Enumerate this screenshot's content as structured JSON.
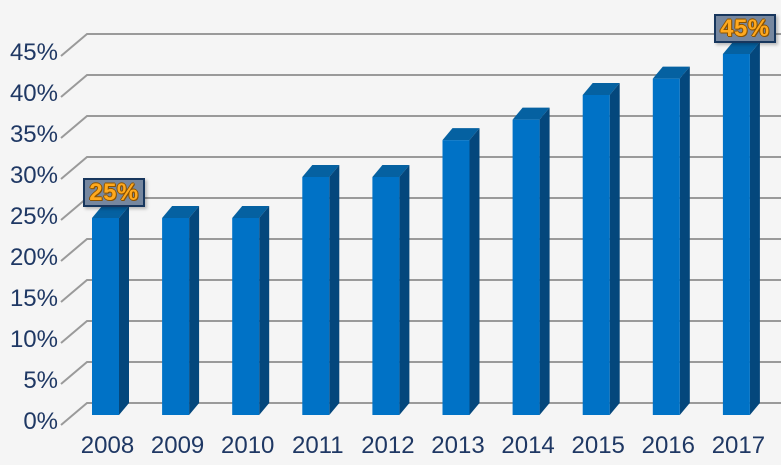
{
  "chart": {
    "background": "#f5f5f5",
    "bar_front_color": "#0072C6",
    "bar_top_color": "#0561A1",
    "bar_side_color": "#04477C",
    "gridline_color": "#9a9a9a",
    "axis_label_color": "#1F3864",
    "callout_fill": "#76879F",
    "callout_border": "#17365D",
    "callout_text_color": "#FFA91E"
  },
  "chart_data": {
    "type": "bar",
    "variant": "3d-column",
    "title": "",
    "xlabel": "",
    "ylabel": "",
    "categories": [
      "2008",
      "2009",
      "2010",
      "2011",
      "2012",
      "2013",
      "2014",
      "2015",
      "2016",
      "2017"
    ],
    "values": [
      25,
      25,
      25,
      30,
      30,
      34.5,
      37,
      40,
      42,
      45
    ],
    "unit": "%",
    "y_axis": {
      "min": 0,
      "max": 45,
      "step": 5,
      "tick_labels": [
        "0%",
        "5%",
        "10%",
        "15%",
        "20%",
        "25%",
        "30%",
        "35%",
        "40%",
        "45%"
      ]
    },
    "grid": true,
    "legend": false,
    "annotations": [
      {
        "category": "2008",
        "text": "25%"
      },
      {
        "category": "2017",
        "text": "45%"
      }
    ]
  }
}
